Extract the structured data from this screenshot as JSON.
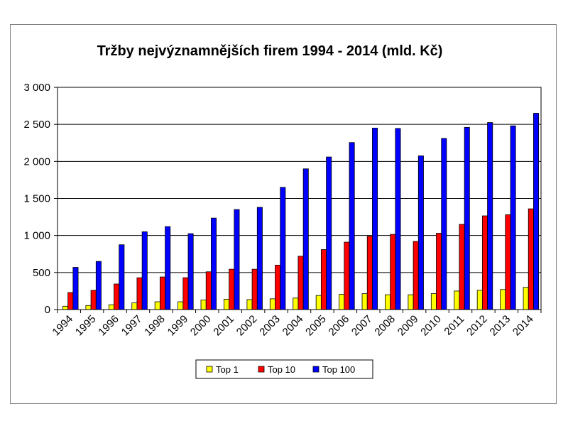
{
  "chart_data": {
    "type": "bar",
    "title": "Tržby nejvýznamnějších firem 1994 - 2014 (mld. Kč)",
    "xlabel": "",
    "ylabel": "",
    "ylim": [
      0,
      3000
    ],
    "yticks": [
      0,
      500,
      1000,
      1500,
      2000,
      2500,
      3000
    ],
    "ytick_labels": [
      "0",
      "500",
      "1 000",
      "1 500",
      "2 000",
      "2 500",
      "3 000"
    ],
    "grid": "horizontal",
    "legend_position": "bottom",
    "categories": [
      "1994",
      "1995",
      "1996",
      "1997",
      "1998",
      "1999",
      "2000",
      "2001",
      "2002",
      "2003",
      "2004",
      "2005",
      "2006",
      "2007",
      "2008",
      "2009",
      "2010",
      "2011",
      "2012",
      "2013",
      "2014"
    ],
    "series": [
      {
        "name": "Top 1",
        "color": "#ffff00",
        "values": [
          45,
          55,
          65,
          90,
          105,
          105,
          130,
          140,
          135,
          145,
          155,
          190,
          205,
          215,
          200,
          200,
          215,
          250,
          260,
          270,
          300
        ]
      },
      {
        "name": "Top 10",
        "color": "#ff0000",
        "values": [
          230,
          260,
          345,
          430,
          440,
          430,
          510,
          545,
          545,
          600,
          720,
          810,
          910,
          990,
          1015,
          920,
          1030,
          1150,
          1265,
          1280,
          1360
        ]
      },
      {
        "name": "Top 100",
        "color": "#0000ff",
        "values": [
          570,
          650,
          875,
          1050,
          1120,
          1025,
          1235,
          1350,
          1380,
          1650,
          1900,
          2060,
          2255,
          2450,
          2445,
          2075,
          2310,
          2460,
          2525,
          2480,
          2650
        ]
      }
    ]
  }
}
